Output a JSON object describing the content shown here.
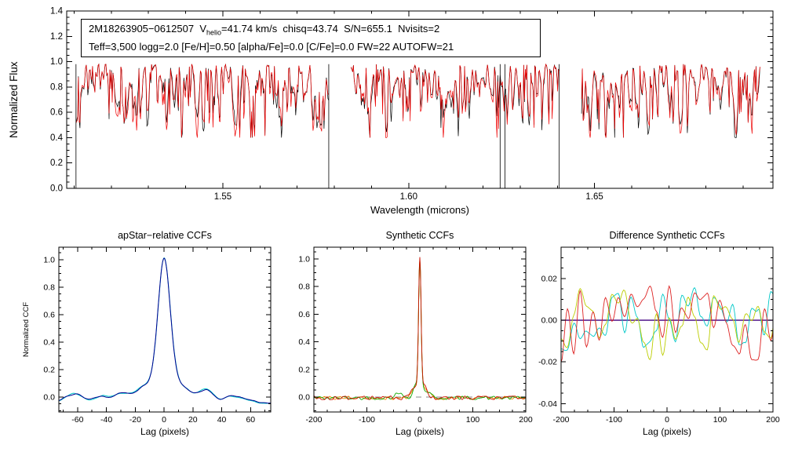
{
  "figure": {
    "background": "#ffffff",
    "observed_color": "#000000",
    "model_color": "#ee0000"
  },
  "annotation": {
    "line1_pre": "2M18263905−0612507  V",
    "line1_sub": "helio",
    "line1_post": "=41.74 km/s  chisq=43.74  S/N=655.1  Nvisits=2",
    "line2": "Teff=3,500 logg=2.0 [Fe/H]=0.50 [alpha/Fe]=0.0 [C/Fe]=0.0 FW=22 AUTOFW=21"
  },
  "chart_data": [
    {
      "id": "spectrum",
      "type": "line",
      "title": "",
      "xlabel": "Wavelength (microns)",
      "ylabel": "Normalized Flux",
      "xlim": [
        1.508,
        1.698
      ],
      "ylim": [
        0.0,
        1.4
      ],
      "xticks": {
        "major": [
          1.55,
          1.6,
          1.65
        ],
        "labels": [
          "1.55",
          "1.60",
          "1.65"
        ],
        "minor_step": 0.01
      },
      "yticks": {
        "major": [
          0.0,
          0.2,
          0.4,
          0.6,
          0.8,
          1.0,
          1.2,
          1.4
        ],
        "labels": [
          "0.0",
          "0.2",
          "0.4",
          "0.6",
          "0.8",
          "1.0",
          "1.2",
          "1.4"
        ],
        "minor_step": 0.05
      },
      "segments": [
        [
          1.5105,
          1.5785
        ],
        [
          1.5845,
          1.6405
        ],
        [
          1.6465,
          1.6945
        ]
      ],
      "drop_lines": [
        1.5105,
        1.5785,
        1.6246,
        1.6259,
        1.6405
      ],
      "noise": {
        "continuum": 0.98,
        "seed": 7,
        "depth1": 0.48,
        "scale1": 2.2,
        "pow1": 1.7,
        "depth2": 0.28,
        "scale2": 5,
        "pow2": 2.4,
        "deep_scale": 1.6,
        "deep_thresh": 0.84,
        "deep_gain": 2.2,
        "perturb": 0.25,
        "perturb_scale": 3,
        "min": 0.4,
        "max": 1.015
      },
      "series": [
        {
          "name": "observed-spectrum",
          "color": "#000000",
          "perturb_seed": 101
        },
        {
          "name": "best-fit-model",
          "color": "#ee0000",
          "perturb_seed": 202
        }
      ]
    },
    {
      "id": "ccf_apstar",
      "type": "line",
      "title": "apStar−relative CCFs",
      "xlabel": "Lag (pixels)",
      "ylabel": "Normalized CCF",
      "xlim": [
        -73,
        74
      ],
      "ylim": [
        -0.11,
        1.09
      ],
      "x_step": 0.5,
      "xticks": {
        "major": [
          -60,
          -40,
          -20,
          0,
          20,
          40,
          60
        ],
        "labels": [
          "-60",
          "-40",
          "-20",
          "0",
          "20",
          "40",
          "60"
        ],
        "minor_step": 10
      },
      "yticks": {
        "major": [
          0.0,
          0.2,
          0.4,
          0.6,
          0.8,
          1.0
        ],
        "labels": [
          "0.0",
          "0.2",
          "0.4",
          "0.6",
          "0.8",
          "1.0"
        ],
        "minor_step": 0.05
      },
      "series": [
        {
          "name": "ccf-visit",
          "color": "#00c8c8",
          "width": 1.0,
          "base": -0.028,
          "peaks": [
            {
              "amp": 0.84,
              "c": 0,
              "s": 4.1
            },
            {
              "amp": 0.19,
              "c": 0,
              "s": 11
            }
          ],
          "bumps": [
            {
              "amp": 0.05,
              "c": -60,
              "s": 5
            },
            {
              "amp": 0.022,
              "c": -45,
              "s": 4
            },
            {
              "amp": 0.062,
              "c": -30,
              "s": 5
            },
            {
              "amp": 0.028,
              "c": -15,
              "s": 3.5
            },
            {
              "amp": 0.03,
              "c": 15,
              "s": 3.5
            },
            {
              "amp": 0.068,
              "c": 30,
              "s": 5
            },
            {
              "amp": 0.026,
              "c": 45,
              "s": 4
            },
            {
              "amp": 0.02,
              "c": 57,
              "s": 5
            },
            {
              "amp": -0.03,
              "c": 73,
              "s": 6
            }
          ],
          "wiggle": {
            "amp": 0.013,
            "period": 23,
            "phase": 0.6
          },
          "noise": {
            "amp": 0.007,
            "seed": 31,
            "scale": 9
          }
        },
        {
          "name": "ccf-combined",
          "color": "#000090",
          "width": 1.0,
          "base": -0.028,
          "peaks": [
            {
              "amp": 0.84,
              "c": 0,
              "s": 4.1
            },
            {
              "amp": 0.19,
              "c": 0,
              "s": 11
            }
          ],
          "bumps": [
            {
              "amp": 0.05,
              "c": -60,
              "s": 5
            },
            {
              "amp": 0.022,
              "c": -45,
              "s": 4
            },
            {
              "amp": 0.062,
              "c": -30,
              "s": 5
            },
            {
              "amp": 0.028,
              "c": -15,
              "s": 3.5
            },
            {
              "amp": 0.03,
              "c": 15,
              "s": 3.5
            },
            {
              "amp": 0.068,
              "c": 30,
              "s": 5
            },
            {
              "amp": 0.026,
              "c": 45,
              "s": 4
            },
            {
              "amp": 0.02,
              "c": 57,
              "s": 5
            },
            {
              "amp": -0.03,
              "c": 73,
              "s": 6
            }
          ],
          "wiggle": {
            "amp": 0.013,
            "period": 23,
            "phase": 1.1
          },
          "noise": {
            "amp": 0.007,
            "seed": 32,
            "scale": 9
          }
        }
      ]
    },
    {
      "id": "ccf_synth",
      "type": "line",
      "title": "Synthetic CCFs",
      "xlabel": "Lag (pixels)",
      "ylabel": "",
      "xlim": [
        -200,
        200
      ],
      "ylim": [
        -0.108,
        1.085
      ],
      "x_step": 1,
      "xticks": {
        "major": [
          -200,
          -100,
          0,
          100,
          200
        ],
        "labels": [
          "-200",
          "-100",
          "0",
          "100",
          "200"
        ],
        "minor_step": 25
      },
      "yticks": {
        "major": [
          0.0,
          0.2,
          0.4,
          0.6,
          0.8,
          1.0
        ],
        "labels": [
          "0.0",
          "0.2",
          "0.4",
          "0.6",
          "0.8",
          "1.0"
        ],
        "minor_step": 0.05
      },
      "zero_line": {
        "y": 0,
        "color": "#888888",
        "dash": "7,6",
        "width": 1
      },
      "series": [
        {
          "name": "synth-orange",
          "color": "#ee8800",
          "width": 0.9,
          "base": -0.006,
          "peaks": [
            {
              "amp": 0.9,
              "c": 0,
              "s": 2.3
            },
            {
              "amp": 0.1,
              "c": 0,
              "s": 7
            }
          ],
          "bumps": [
            {
              "amp": 0.045,
              "c": -12,
              "s": 5
            },
            {
              "amp": 0.04,
              "c": 14,
              "s": 6
            }
          ],
          "noise": {
            "amp": 0.013,
            "seed": 41,
            "scale": 5
          }
        },
        {
          "name": "synth-green",
          "color": "#11aa00",
          "width": 0.9,
          "base": -0.006,
          "peaks": [
            {
              "amp": 0.9,
              "c": 0,
              "s": 2.3
            },
            {
              "amp": 0.1,
              "c": 0,
              "s": 7
            }
          ],
          "bumps": [
            {
              "amp": 0.05,
              "c": -10,
              "s": 4.5
            },
            {
              "amp": 0.035,
              "c": 16,
              "s": 6
            },
            {
              "amp": 0.03,
              "c": -40,
              "s": 8
            }
          ],
          "noise": {
            "amp": 0.013,
            "seed": 42,
            "scale": 5
          }
        },
        {
          "name": "synth-red",
          "color": "#cc1100",
          "width": 0.9,
          "base": -0.006,
          "peaks": [
            {
              "amp": 0.9,
              "c": 0,
              "s": 2.3
            },
            {
              "amp": 0.1,
              "c": 0,
              "s": 7
            }
          ],
          "bumps": [
            {
              "amp": 0.04,
              "c": -14,
              "s": 6
            },
            {
              "amp": 0.05,
              "c": 11,
              "s": 4.5
            }
          ],
          "noise": {
            "amp": 0.014,
            "seed": 43,
            "scale": 5
          }
        }
      ]
    },
    {
      "id": "ccf_diff",
      "type": "line",
      "title": "Difference Synthetic CCFs",
      "xlabel": "Lag (pixels)",
      "ylabel": "",
      "xlim": [
        -200,
        200
      ],
      "ylim": [
        -0.044,
        0.035
      ],
      "x_step": 2,
      "xticks": {
        "major": [
          -200,
          -100,
          0,
          100,
          200
        ],
        "labels": [
          "-200",
          "-100",
          "0",
          "100",
          "200"
        ],
        "minor_step": 25
      },
      "yticks": {
        "major": [
          -0.04,
          -0.02,
          0.0,
          0.02
        ],
        "labels": [
          "-0.04",
          "-0.02",
          "0.00",
          "0.02"
        ],
        "minor_step": 0.005
      },
      "zero_line": {
        "y": 0,
        "color": "#400080",
        "dash": null,
        "width": 1.3
      },
      "series": [
        {
          "name": "diff-cyan",
          "color": "#00c8c8",
          "width": 0.9,
          "noise": {
            "amp": 0.014,
            "seed": 51,
            "scale": 6
          },
          "noise2": {
            "amp": 0.008,
            "seed": 54,
            "scale": 18
          }
        },
        {
          "name": "diff-yellow",
          "color": "#bccd00",
          "width": 0.9,
          "noise": {
            "amp": 0.014,
            "seed": 52,
            "scale": 6
          },
          "noise2": {
            "amp": 0.008,
            "seed": 55,
            "scale": 18
          }
        },
        {
          "name": "diff-red",
          "color": "#dd2222",
          "width": 0.9,
          "noise": {
            "amp": 0.016,
            "seed": 53,
            "scale": 6
          },
          "noise2": {
            "amp": 0.009,
            "seed": 56,
            "scale": 18
          }
        }
      ]
    }
  ]
}
